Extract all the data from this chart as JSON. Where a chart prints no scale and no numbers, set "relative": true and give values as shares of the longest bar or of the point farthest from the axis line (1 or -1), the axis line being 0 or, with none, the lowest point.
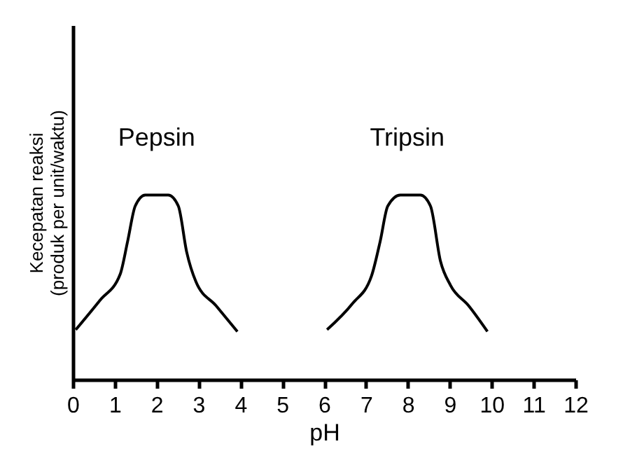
{
  "chart_data": {
    "type": "line",
    "relative": true,
    "xlabel": "pH",
    "ylabel": "Kecepatan reaksi\n(produk per unit/waktu)",
    "xlim": [
      0,
      12
    ],
    "xticks": [
      0,
      1,
      2,
      3,
      4,
      5,
      6,
      7,
      8,
      9,
      10,
      11,
      12
    ],
    "grid": false,
    "legend": false,
    "marker": "none",
    "line_style": "solid",
    "series": [
      {
        "name": "Pepsin",
        "color": "#000000",
        "x": [
          0.07,
          0.65,
          1.13,
          1.31,
          1.49,
          1.73,
          2.28,
          2.52,
          2.72,
          2.94,
          3.42,
          3.93
        ],
        "values": [
          0.27,
          0.43,
          0.57,
          0.75,
          0.94,
          1.0,
          1.0,
          0.94,
          0.69,
          0.53,
          0.4,
          0.26
        ]
      },
      {
        "name": "Tripsin",
        "color": "#000000",
        "x": [
          6.07,
          6.67,
          7.13,
          7.34,
          7.52,
          7.82,
          8.3,
          8.54,
          8.78,
          9.02,
          9.45,
          9.9
        ],
        "values": [
          0.27,
          0.41,
          0.56,
          0.75,
          0.94,
          1.0,
          1.0,
          0.94,
          0.64,
          0.51,
          0.4,
          0.26
        ]
      }
    ]
  }
}
